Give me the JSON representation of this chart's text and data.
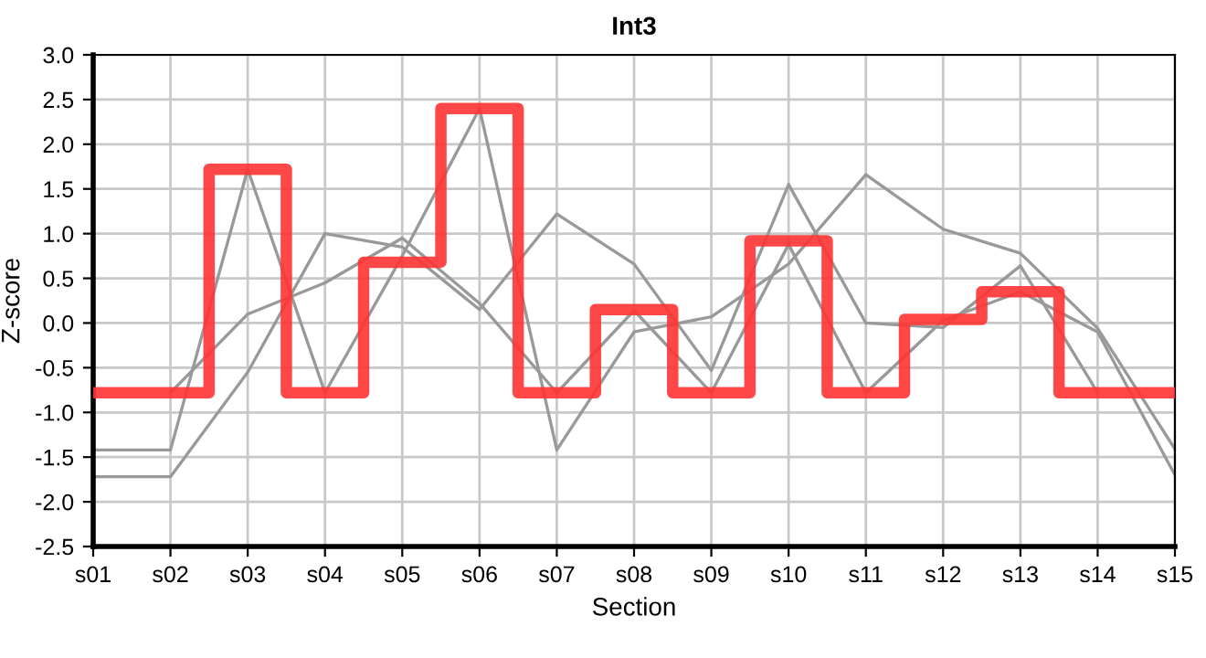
{
  "chart_data": {
    "type": "line",
    "title": "Int3",
    "xlabel": "Section",
    "ylabel": "Z-score",
    "categories": [
      "s01",
      "s02",
      "s03",
      "s04",
      "s05",
      "s06",
      "s07",
      "s08",
      "s09",
      "s10",
      "s11",
      "s12",
      "s13",
      "s14",
      "s15"
    ],
    "series": [
      {
        "color": "#999999",
        "values": [
          -1.42,
          -1.42,
          1.72,
          -0.78,
          0.75,
          2.4,
          -1.42,
          -0.1,
          0.07,
          0.66,
          1.66,
          1.05,
          0.78,
          -0.06,
          -1.41
        ]
      },
      {
        "color": "#999999",
        "values": [
          -1.72,
          -1.72,
          -0.55,
          1.0,
          0.85,
          0.15,
          1.22,
          0.66,
          -0.53,
          1.55,
          0.0,
          -0.05,
          0.64,
          -0.78,
          null
        ]
      },
      {
        "color": "#999999",
        "values": [
          null,
          -0.78,
          0.1,
          0.45,
          0.95,
          0.22,
          -0.78,
          0.14,
          -0.78,
          0.88,
          -0.78,
          0.03,
          0.35,
          -0.1,
          -1.7
        ]
      },
      {
        "type": "step",
        "color": "#ff3333",
        "values": [
          -0.78,
          -0.78,
          1.72,
          -0.78,
          0.68,
          2.4,
          -0.78,
          0.15,
          -0.78,
          0.92,
          -0.78,
          0.04,
          0.35,
          -0.78,
          -0.78
        ]
      }
    ],
    "ylim": [
      -2.5,
      3.0
    ],
    "yticks": [
      {
        "value": -2.5,
        "label": "-2.5"
      },
      {
        "value": -2.0,
        "label": "-2.0"
      },
      {
        "value": -1.5,
        "label": "-1.5"
      },
      {
        "value": -1.0,
        "label": "-1.0"
      },
      {
        "value": -0.5,
        "label": "-0.5"
      },
      {
        "value": 0.0,
        "label": "0.0"
      },
      {
        "value": 0.5,
        "label": "0.5"
      },
      {
        "value": 1.0,
        "label": "1.0"
      },
      {
        "value": 1.5,
        "label": "1.5"
      },
      {
        "value": 2.0,
        "label": "2.0"
      },
      {
        "value": 2.5,
        "label": "2.5"
      },
      {
        "value": 3.0,
        "label": "3.0"
      }
    ],
    "grid": true,
    "legend": false
  }
}
